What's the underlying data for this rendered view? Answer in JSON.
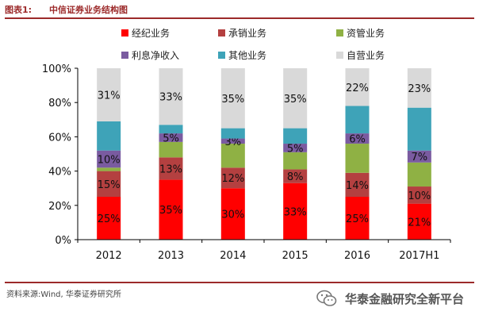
{
  "header": {
    "label": "图表1:",
    "title": "中信证券业务结构图"
  },
  "chart_data": {
    "type": "bar",
    "stacked": true,
    "categories": [
      "2012",
      "2013",
      "2014",
      "2015",
      "2016",
      "2017H1"
    ],
    "ylim": [
      0,
      100
    ],
    "yticks": [
      "0%",
      "20%",
      "40%",
      "60%",
      "80%",
      "100%"
    ],
    "legend": "top",
    "series": [
      {
        "name": "经纪业务",
        "color": "#ff0000",
        "values": [
          25,
          35,
          30,
          33,
          25,
          21
        ],
        "labels": [
          "25%",
          "35%",
          "30%",
          "33%",
          "25%",
          "21%"
        ]
      },
      {
        "name": "承销业务",
        "color": "#b44040",
        "values": [
          15,
          13,
          12,
          8,
          14,
          10
        ],
        "labels": [
          "15%",
          "13%",
          "12%",
          "8%",
          "14%",
          "10%"
        ]
      },
      {
        "name": "资管业务",
        "color": "#8fb144",
        "values": [
          2,
          9,
          14,
          10,
          17,
          14
        ],
        "labels": [
          "",
          "",
          "",
          "",
          "",
          ""
        ]
      },
      {
        "name": "利息净收入",
        "color": "#7a5ba0",
        "values": [
          10,
          5,
          3,
          5,
          6,
          7
        ],
        "labels": [
          "10%",
          "5%",
          "3%",
          "5%",
          "6%",
          "7%"
        ]
      },
      {
        "name": "其他业务",
        "color": "#3ea3b8",
        "values": [
          17,
          5,
          6,
          9,
          16,
          25
        ],
        "labels": [
          "",
          "",
          "",
          "",
          "",
          ""
        ]
      },
      {
        "name": "自营业务",
        "color": "#d9d9d9",
        "values": [
          31,
          33,
          35,
          35,
          22,
          23
        ],
        "labels": [
          "31%",
          "33%",
          "35%",
          "35%",
          "22%",
          "23%"
        ]
      }
    ]
  },
  "footer": {
    "source": "资料来源:Wind, 华泰证券研究所",
    "watermark": "华泰金融研究全新平台",
    "watermark_icon": "wechat-icon"
  }
}
